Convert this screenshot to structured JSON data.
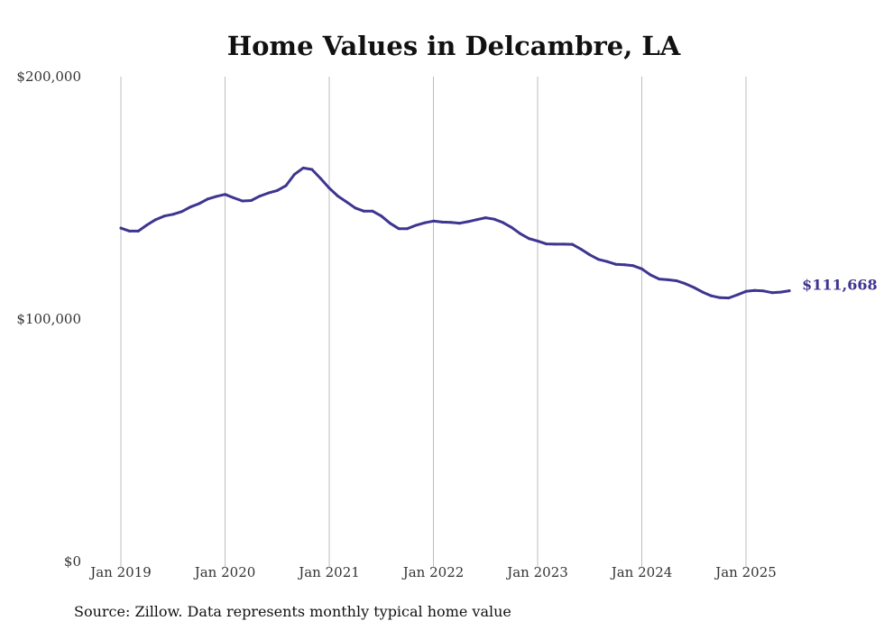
{
  "chart_data": {
    "type": "line",
    "title": "Home Values in Delcambre, LA",
    "xlabel": "",
    "ylabel": "",
    "ylim": [
      0,
      200000
    ],
    "y_ticks": [
      {
        "value": 0,
        "label": "$0"
      },
      {
        "value": 100000,
        "label": "$100,000"
      },
      {
        "value": 200000,
        "label": "$200,000"
      }
    ],
    "x_ticks": [
      {
        "value": "2019-01",
        "label": "Jan 2019"
      },
      {
        "value": "2020-01",
        "label": "Jan 2020"
      },
      {
        "value": "2021-01",
        "label": "Jan 2021"
      },
      {
        "value": "2022-01",
        "label": "Jan 2022"
      },
      {
        "value": "2023-01",
        "label": "Jan 2023"
      },
      {
        "value": "2024-01",
        "label": "Jan 2024"
      },
      {
        "value": "2025-01",
        "label": "Jan 2025"
      }
    ],
    "grid": "vertical",
    "line_color": "#3d3590",
    "end_label": "$111,668",
    "series": [
      {
        "x": [
          "2019-01",
          "2019-02",
          "2019-03",
          "2019-04",
          "2019-05",
          "2019-06",
          "2019-07",
          "2019-08",
          "2019-09",
          "2019-10",
          "2019-11",
          "2019-12",
          "2020-01",
          "2020-02",
          "2020-03",
          "2020-04",
          "2020-05",
          "2020-06",
          "2020-07",
          "2020-08",
          "2020-09",
          "2020-10",
          "2020-11",
          "2020-12",
          "2021-01",
          "2021-02",
          "2021-03",
          "2021-04",
          "2021-05",
          "2021-06",
          "2021-07",
          "2021-08",
          "2021-09",
          "2021-10",
          "2021-11",
          "2021-12",
          "2022-01",
          "2022-02",
          "2022-03",
          "2022-04",
          "2022-05",
          "2022-06",
          "2022-07",
          "2022-08",
          "2022-09",
          "2022-10",
          "2022-11",
          "2022-12",
          "2023-01",
          "2023-02",
          "2023-03",
          "2023-04",
          "2023-05",
          "2023-06",
          "2023-07",
          "2023-08",
          "2023-09",
          "2023-10",
          "2023-11",
          "2023-12",
          "2024-01",
          "2024-02",
          "2024-03",
          "2024-04",
          "2024-05",
          "2024-06",
          "2024-07",
          "2024-08",
          "2024-09",
          "2024-10",
          "2024-11",
          "2024-12",
          "2025-01",
          "2025-02",
          "2025-03",
          "2025-04",
          "2025-05",
          "2025-06"
        ],
        "values": [
          137500,
          136300,
          136300,
          138800,
          141000,
          142500,
          143200,
          144300,
          146200,
          147600,
          149500,
          150600,
          151400,
          150000,
          148700,
          148900,
          150700,
          152000,
          153000,
          155000,
          159700,
          162300,
          161700,
          158000,
          154000,
          150700,
          148300,
          145800,
          144500,
          144500,
          142500,
          139500,
          137300,
          137300,
          138700,
          139700,
          140400,
          140000,
          139900,
          139500,
          140200,
          141000,
          141800,
          141200,
          139800,
          137800,
          135200,
          133200,
          132200,
          131000,
          130900,
          130900,
          130800,
          128800,
          126500,
          124600,
          123700,
          122600,
          122400,
          122000,
          120700,
          118200,
          116500,
          116200,
          115800,
          114600,
          113000,
          111100,
          109600,
          108800,
          108700,
          110000,
          111400,
          111800,
          111600,
          110900,
          111100,
          111668
        ]
      }
    ]
  },
  "footer": {
    "source": "Source: Zillow. Data represents monthly typical home value"
  }
}
